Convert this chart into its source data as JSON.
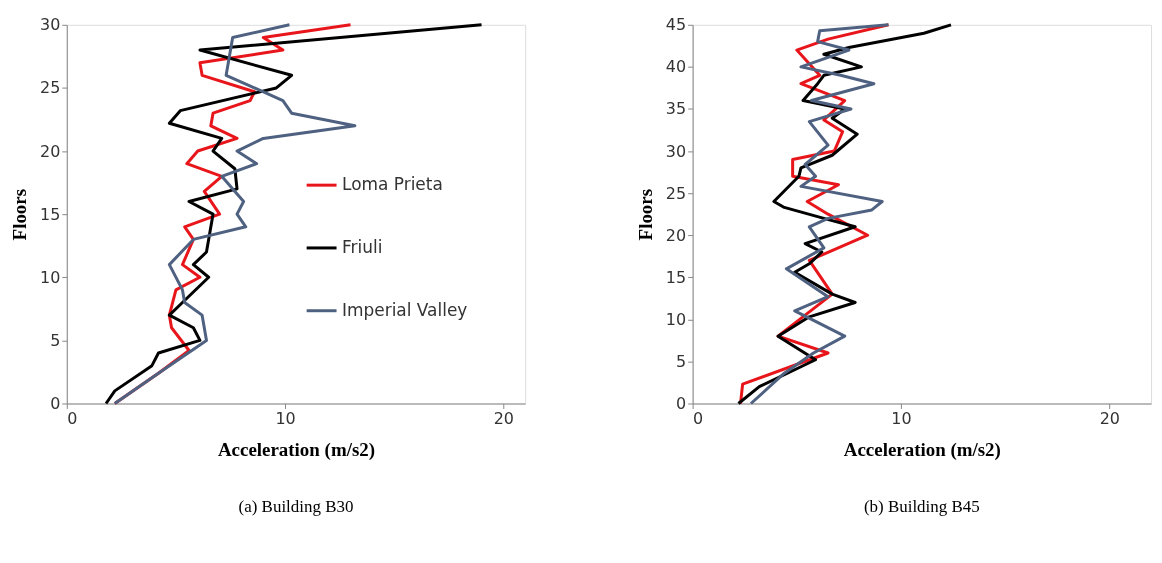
{
  "chart_data": [
    {
      "type": "line",
      "xlabel": "Acceleration (m/s2)",
      "ylabel": "Floors",
      "xlim": [
        0,
        21
      ],
      "xticks": [
        0,
        10,
        20
      ],
      "ylim": [
        0,
        30
      ],
      "yticks": [
        0,
        5,
        10,
        15,
        20,
        25,
        30
      ],
      "grid": false,
      "legend": "right",
      "line_style": "solid",
      "marker": "none",
      "annotations": [
        "(a) Building B30"
      ],
      "series": [
        {
          "name": "Loma Prieta",
          "color": "#e8161b",
          "x": [
            13.0,
            9.0,
            9.9,
            6.1,
            6.2,
            8.6,
            8.4,
            6.7,
            6.6,
            7.8,
            6.0,
            5.5,
            7.1,
            6.3,
            7.0,
            5.4,
            5.8,
            5.3,
            6.1,
            5.0,
            4.7,
            4.8,
            5.6,
            4.2,
            2.2
          ],
          "values": [
            30,
            29,
            28,
            27,
            26,
            24.7,
            24,
            23,
            22,
            21,
            20,
            19,
            18,
            16.8,
            15,
            14,
            13,
            11,
            10,
            9,
            7,
            6,
            4.2,
            2.4,
            0
          ]
        },
        {
          "name": "Friuli",
          "color": "#000000",
          "x": [
            19.0,
            6.1,
            10.3,
            9.6,
            5.2,
            4.7,
            7.1,
            6.7,
            7.7,
            7.8,
            5.6,
            6.7,
            6.4,
            5.8,
            6.5,
            5.3,
            4.7,
            5.8,
            6.1,
            4.2,
            3.9,
            2.2,
            1.8
          ],
          "values": [
            30,
            28,
            26,
            25,
            23.2,
            22.2,
            21,
            20,
            18.6,
            17,
            16,
            15,
            12,
            11,
            10,
            8,
            7,
            6,
            5,
            4,
            3,
            1,
            0
          ]
        },
        {
          "name": "Imperial Valley",
          "color": "#4f6181",
          "x": [
            10.2,
            7.6,
            7.3,
            9.9,
            10.3,
            13.2,
            9.0,
            7.8,
            8.7,
            7.1,
            8.1,
            7.8,
            8.2,
            5.8,
            4.7,
            5.3,
            5.4,
            6.2,
            6.4,
            4.2,
            2.2
          ],
          "values": [
            30,
            29,
            26,
            24,
            23,
            22,
            21,
            20,
            19,
            18,
            16,
            15,
            14,
            13,
            11,
            9,
            8,
            7,
            5,
            2.4,
            0
          ]
        }
      ]
    },
    {
      "type": "line",
      "xlabel": "Acceleration (m/s2)",
      "ylabel": "Floors",
      "xlim": [
        0,
        22
      ],
      "xticks": [
        0,
        10,
        20
      ],
      "ylim": [
        0,
        45
      ],
      "yticks": [
        0,
        5,
        10,
        15,
        20,
        25,
        30,
        35,
        40,
        45
      ],
      "grid": false,
      "legend": false,
      "line_style": "solid",
      "marker": "none",
      "annotations": [
        "(b) Building B45"
      ],
      "series": [
        {
          "color": "#e8161b",
          "x": [
            9.4,
            6.5,
            5.0,
            6.1,
            5.2,
            7.3,
            6.3,
            7.2,
            6.8,
            4.8,
            4.8,
            7.0,
            5.5,
            6.5,
            8.4,
            5.6,
            6.7,
            4.1,
            6.5,
            2.4,
            2.3
          ],
          "values": [
            45,
            43.3,
            42,
            39,
            38,
            36,
            33.7,
            32.3,
            30,
            29,
            27,
            26,
            24,
            22.5,
            20,
            17,
            13,
            8,
            6,
            2.3,
            0
          ]
        },
        {
          "color": "#000000",
          "x": [
            12.4,
            11.1,
            7.5,
            6.3,
            8.1,
            6.3,
            6.0,
            5.3,
            7.3,
            6.7,
            7.9,
            6.7,
            5.2,
            5.1,
            3.9,
            4.4,
            6.3,
            7.8,
            5.4,
            6.2,
            5.6,
            4.9,
            6.7,
            7.8,
            5.6,
            4.1,
            5.9,
            3.2,
            2.2
          ],
          "values": [
            45,
            44,
            42.3,
            41.5,
            40,
            39,
            38,
            36,
            35,
            33.9,
            32,
            29.5,
            28,
            27,
            24,
            23.3,
            22,
            21,
            19,
            18,
            16.6,
            15.6,
            13,
            12,
            10.3,
            8,
            5.2,
            2,
            0
          ]
        },
        {
          "color": "#4f6181",
          "x": [
            9.4,
            6.1,
            6.0,
            7.5,
            5.2,
            7.1,
            8.7,
            5.7,
            7.6,
            5.6,
            6.5,
            5.4,
            5.9,
            5.2,
            9.1,
            8.6,
            6.5,
            5.6,
            6.3,
            4.5,
            6.5,
            4.9,
            7.3,
            5.8,
            4.4,
            2.8
          ],
          "values": [
            45,
            44.3,
            43,
            42,
            40,
            39,
            38,
            36,
            35,
            33.5,
            30.7,
            28.4,
            27,
            25.8,
            24,
            23,
            22,
            21,
            18.5,
            16,
            12.7,
            11,
            8,
            6,
            3.6,
            0
          ]
        }
      ]
    }
  ]
}
